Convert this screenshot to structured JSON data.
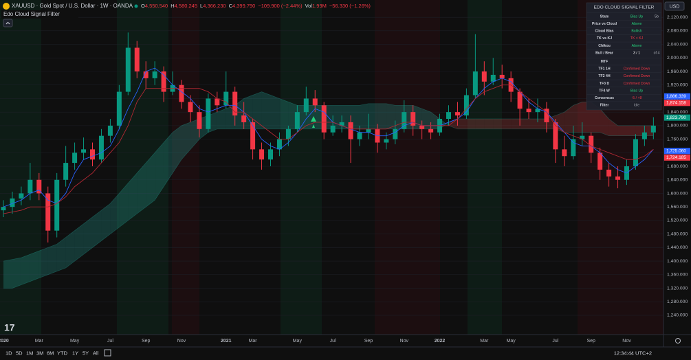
{
  "header": {
    "symbol": "XAUUSD · Gold Spot / U.S. Dollar · 1W · OANDA",
    "ohlc": [
      {
        "key": "O",
        "value": "4,550.540"
      },
      {
        "key": "H",
        "value": "4,580.245"
      },
      {
        "key": "L",
        "value": "4,366.230"
      },
      {
        "key": "C",
        "value": "4,399.790"
      }
    ],
    "change": "−109.900 (−2.44%)",
    "volume": {
      "key": "Vol",
      "value": "1.99M"
    },
    "volume_change": "−56.330 (−1.26%)",
    "indicator": "Edo Cloud Signal Filter",
    "currency": "USD"
  },
  "chart_data": {
    "type": "candlestick",
    "up_color": "#089981",
    "down_color": "#f23645",
    "categories": [
      "2020",
      null,
      null,
      null,
      "Mar",
      null,
      null,
      null,
      "May",
      null,
      null,
      null,
      "Jul",
      null,
      null,
      null,
      "Sep",
      null,
      null,
      null,
      "Nov",
      null,
      null,
      null,
      null,
      "2021",
      null,
      null,
      "Mar",
      null,
      null,
      null,
      null,
      "May",
      null,
      null,
      null,
      "Jul",
      null,
      null,
      null,
      "Sep",
      null,
      null,
      null,
      "Nov",
      null,
      null,
      null,
      "2022",
      null,
      null,
      null,
      null,
      "Mar",
      null,
      null,
      "May",
      null,
      null,
      null,
      null,
      "Jul",
      null,
      null,
      null,
      "Sep",
      null,
      null,
      null,
      "Nov",
      null,
      null,
      null
    ],
    "open": [
      1550,
      1560,
      1585,
      1600,
      1640,
      1600,
      1490,
      1640,
      1690,
      1720,
      1730,
      1700,
      1770,
      1800,
      1900,
      2030,
      1960,
      1940,
      1960,
      1900,
      1920,
      1870,
      1840,
      1790,
      1880,
      1860,
      1900,
      1830,
      1810,
      1730,
      1700,
      1730,
      1760,
      1790,
      1840,
      1880,
      1860,
      1780,
      1800,
      1810,
      1760,
      1780,
      1790,
      1750,
      1760,
      1790,
      1840,
      1800,
      1790,
      1780,
      1820,
      1840,
      1830,
      1890,
      1960,
      1930,
      1950,
      1940,
      1900,
      1850,
      1840,
      1850,
      1810,
      1730,
      1710,
      1760,
      1770,
      1720,
      1670,
      1650,
      1640,
      1680,
      1760,
      1780
    ],
    "high": [
      1580,
      1605,
      1620,
      1690,
      1660,
      1620,
      1660,
      1740,
      1750,
      1765,
      1750,
      1790,
      1820,
      1920,
      2075,
      2050,
      1990,
      1990,
      1975,
      1960,
      1935,
      1890,
      1860,
      1895,
      1900,
      1960,
      1915,
      1870,
      1820,
      1750,
      1750,
      1780,
      1800,
      1860,
      1915,
      1905,
      1870,
      1830,
      1830,
      1830,
      1800,
      1835,
      1805,
      1780,
      1815,
      1875,
      1860,
      1815,
      1810,
      1835,
      1860,
      1870,
      1910,
      2070,
      1990,
      2000,
      1980,
      1960,
      1910,
      1880,
      1880,
      1870,
      1820,
      1770,
      1800,
      1810,
      1780,
      1735,
      1690,
      1680,
      1700,
      1775,
      1800,
      1825
    ],
    "low": [
      1530,
      1540,
      1565,
      1580,
      1580,
      1455,
      1470,
      1620,
      1670,
      1700,
      1680,
      1690,
      1750,
      1790,
      1890,
      1940,
      1910,
      1920,
      1870,
      1890,
      1850,
      1810,
      1765,
      1780,
      1840,
      1850,
      1800,
      1790,
      1700,
      1670,
      1680,
      1710,
      1740,
      1780,
      1830,
      1840,
      1760,
      1770,
      1780,
      1690,
      1740,
      1760,
      1720,
      1730,
      1745,
      1780,
      1770,
      1760,
      1760,
      1770,
      1800,
      1800,
      1820,
      1880,
      1890,
      1920,
      1910,
      1870,
      1800,
      1820,
      1810,
      1780,
      1690,
      1680,
      1700,
      1740,
      1690,
      1640,
      1620,
      1615,
      1625,
      1670,
      1740,
      1760
    ],
    "close": [
      1560,
      1585,
      1600,
      1640,
      1600,
      1490,
      1640,
      1690,
      1720,
      1730,
      1700,
      1770,
      1800,
      1900,
      2030,
      1960,
      1940,
      1960,
      1900,
      1920,
      1870,
      1840,
      1790,
      1880,
      1860,
      1900,
      1830,
      1810,
      1730,
      1700,
      1730,
      1760,
      1790,
      1840,
      1880,
      1860,
      1780,
      1800,
      1810,
      1760,
      1780,
      1790,
      1750,
      1760,
      1790,
      1840,
      1800,
      1790,
      1780,
      1820,
      1840,
      1830,
      1890,
      1960,
      1930,
      1950,
      1940,
      1900,
      1850,
      1840,
      1850,
      1810,
      1730,
      1710,
      1760,
      1770,
      1720,
      1670,
      1650,
      1640,
      1680,
      1760,
      1780,
      1800
    ],
    "lines": [
      {
        "color": "#2962ff",
        "values": [
          1560,
          1570,
          1580,
          1600,
          1610,
          1580,
          1570,
          1600,
          1660,
          1700,
          1710,
          1720,
          1740,
          1790,
          1850,
          1900,
          1960,
          1970,
          1950,
          1920,
          1900,
          1880,
          1850,
          1840,
          1850,
          1860,
          1860,
          1840,
          1800,
          1760,
          1740,
          1730,
          1750,
          1780,
          1820,
          1850,
          1840,
          1810,
          1800,
          1790,
          1780,
          1780,
          1770,
          1770,
          1780,
          1800,
          1810,
          1800,
          1800,
          1800,
          1810,
          1820,
          1840,
          1880,
          1910,
          1930,
          1940,
          1930,
          1900,
          1870,
          1850,
          1840,
          1810,
          1780,
          1750,
          1740,
          1740,
          1720,
          1690,
          1670,
          1660,
          1680,
          1700,
          1730
        ]
      },
      {
        "color": "#b22833",
        "values": [
          1540,
          1545,
          1550,
          1560,
          1560,
          1560,
          1570,
          1590,
          1620,
          1640,
          1660,
          1690,
          1720,
          1750,
          1800,
          1870,
          1910,
          1910,
          1910,
          1910,
          1910,
          1910,
          1910,
          1900,
          1880,
          1870,
          1840,
          1840,
          1820,
          1800,
          1780,
          1760,
          1760,
          1780,
          1800,
          1810,
          1810,
          1810,
          1800,
          1790,
          1790,
          1790,
          1790,
          1790,
          1800,
          1810,
          1810,
          1800,
          1800,
          1800,
          1800,
          1820,
          1850,
          1880,
          1900,
          1910,
          1920,
          1920,
          1900,
          1880,
          1860,
          1840,
          1800,
          1780,
          1770,
          1760,
          1740,
          1730,
          1720,
          1710,
          1700,
          1700,
          1710,
          1730
        ]
      }
    ],
    "cloud": {
      "up_color": "#26a69a",
      "down_color": "#ef5350",
      "span_a": [
        1400,
        1405,
        1410,
        1420,
        1430,
        1440,
        1450,
        1470,
        1490,
        1510,
        1530,
        1550,
        1570,
        1600,
        1630,
        1660,
        1690,
        1720,
        1750,
        1780,
        1800,
        1810,
        1820,
        1830,
        1840,
        1850,
        1860,
        1880,
        1890,
        1900,
        1890,
        1880,
        1870,
        1860,
        1860,
        1860,
        1860,
        1860,
        1860,
        1860,
        1860,
        1865,
        1865,
        1865,
        1860,
        1860,
        1860,
        1850,
        1840,
        1820,
        1800,
        1790,
        1790,
        1790,
        1790,
        1790,
        1790,
        1790,
        1790,
        1790,
        1790,
        1790,
        1790,
        1780,
        1780,
        1780,
        1780,
        1780,
        1770,
        1770,
        1770,
        1770,
        1770,
        1770
      ],
      "span_b": [
        1320,
        1320,
        1330,
        1340,
        1350,
        1360,
        1370,
        1380,
        1400,
        1420,
        1440,
        1460,
        1480,
        1500,
        1520,
        1540,
        1560,
        1580,
        1620,
        1660,
        1700,
        1730,
        1760,
        1780,
        1790,
        1790,
        1790,
        1790,
        1790,
        1790,
        1790,
        1790,
        1790,
        1790,
        1790,
        1790,
        1790,
        1790,
        1790,
        1790,
        1790,
        1790,
        1790,
        1790,
        1790,
        1790,
        1790,
        1790,
        1790,
        1790,
        1810,
        1820,
        1820,
        1820,
        1820,
        1820,
        1820,
        1820,
        1820,
        1820,
        1820,
        1820,
        1830,
        1840,
        1860,
        1870,
        1870,
        1850,
        1820,
        1800,
        1800,
        1800,
        1800,
        1800
      ]
    },
    "ylim": [
      1183,
      2171
    ],
    "yticks": [
      {
        "value": 1240,
        "label": "1,240.000"
      },
      {
        "value": 1280,
        "label": "1,280.000"
      },
      {
        "value": 1320,
        "label": "1,320.000"
      },
      {
        "value": 1360,
        "label": "1,360.000"
      },
      {
        "value": 1400,
        "label": "1,400.000"
      },
      {
        "value": 1440,
        "label": "1,440.000"
      },
      {
        "value": 1480,
        "label": "1,480.000"
      },
      {
        "value": 1520,
        "label": "1,520.000"
      },
      {
        "value": 1560,
        "label": "1,560.000"
      },
      {
        "value": 1600,
        "label": "1,600.000"
      },
      {
        "value": 1640,
        "label": "1,640.000"
      },
      {
        "value": 1680,
        "label": "1,680.000"
      },
      {
        "value": 1720,
        "label": "1,720.000"
      },
      {
        "value": 1760,
        "label": "1,760.000"
      },
      {
        "value": 1800,
        "label": "1,800.000"
      },
      {
        "value": 1840,
        "label": "1,840.000"
      },
      {
        "value": 1880,
        "label": "1,880.000"
      },
      {
        "value": 1920,
        "label": "1,920.000"
      },
      {
        "value": 1960,
        "label": "1,960.000"
      },
      {
        "value": 2000,
        "label": "2,000.000"
      },
      {
        "value": 2040,
        "label": "2,040.000"
      },
      {
        "value": 2080,
        "label": "2,080.000"
      },
      {
        "value": 2120,
        "label": "2,120.000"
      }
    ],
    "price_tags": [
      {
        "value": 1886.339,
        "label": "1,886.339",
        "color": "#2962ff"
      },
      {
        "value": 1874.158,
        "label": "1,874.158",
        "color": "#f23645"
      },
      {
        "value": 1823.79,
        "label": "1,823.790",
        "color": "#089981"
      },
      {
        "value": 1725.06,
        "label": "1,725.060",
        "color": "#2962ff"
      },
      {
        "value": 1724.185,
        "label": "1,724.185",
        "color": "#f23645"
      }
    ]
  },
  "table": {
    "title": "EDO CLOUD SIGNAL FILTER",
    "rows": [
      {
        "label": "State",
        "value": "Bias Up",
        "color": "#26d07c",
        "extra": "5b"
      },
      {
        "label": "Price vs Cloud",
        "value": "Above",
        "color": "#26d07c"
      },
      {
        "label": "Cloud Bias",
        "value": "Bullish",
        "color": "#26d07c"
      },
      {
        "label": "TK vs KJ",
        "value": "TK < KJ",
        "color": "#f23645"
      },
      {
        "label": "Chikou",
        "value": "Above",
        "color": "#26d07c"
      },
      {
        "label": "Bull / Bear",
        "value": "3 / 1",
        "color": "#ffffff",
        "extra": "of 4"
      },
      {
        "label": "MTF"
      },
      {
        "label": "TF1 1H",
        "value": "Confirmed Down",
        "color": "#f23645"
      },
      {
        "label": "TF2 4H",
        "value": "Confirmed Down",
        "color": "#f23645"
      },
      {
        "label": "TF3 D",
        "value": "Confirmed Down",
        "color": "#f23645"
      },
      {
        "label": "TF4 W",
        "value": "Bias Up",
        "color": "#26d07c"
      },
      {
        "label": "Consensus",
        "value": "-5 / +8",
        "color": "#f23645"
      },
      {
        "label": "Filter",
        "value": "Idle",
        "color": "#9598a1"
      }
    ]
  },
  "toolbar": {
    "ranges": [
      "1D",
      "5D",
      "1M",
      "3M",
      "6M",
      "YTD",
      "1Y",
      "5Y",
      "All"
    ],
    "clock": "12:34:44 UTC+2"
  }
}
